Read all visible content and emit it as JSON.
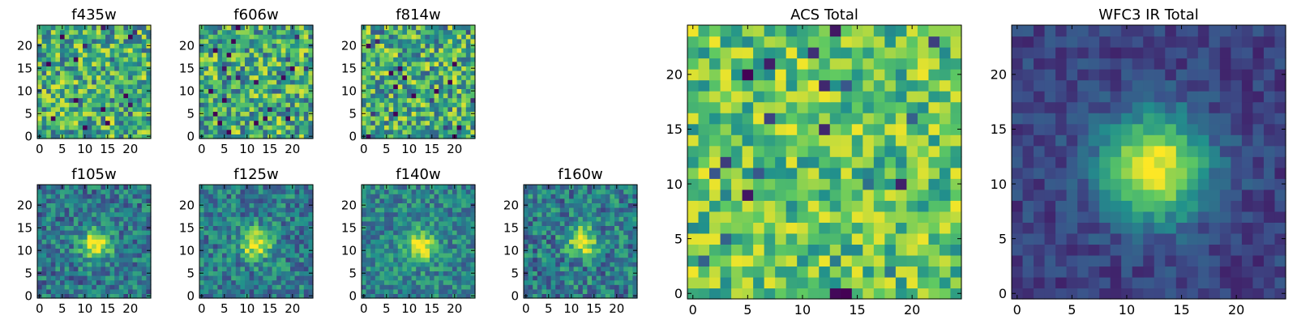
{
  "figure": {
    "colormap": "viridis",
    "colors": {
      "frame": "#000000",
      "background": "#ffffff",
      "viridis_stops": [
        "#440154",
        "#3b528b",
        "#21918c",
        "#5ec962",
        "#fde725"
      ]
    }
  },
  "chart_data": [
    {
      "id": "f435w",
      "type": "heatmap",
      "title": "f435w",
      "grid_size": 25,
      "xticks": [
        0,
        5,
        10,
        15,
        20
      ],
      "yticks": [
        0,
        5,
        10,
        15,
        20
      ],
      "xlim": [
        -0.5,
        24.5
      ],
      "ylim": [
        -0.5,
        24.5
      ],
      "content": "noise",
      "source_kind": "none",
      "mean_level": 0.62,
      "noise_amplitude": 0.34,
      "seed": 11
    },
    {
      "id": "f606w",
      "type": "heatmap",
      "title": "f606w",
      "grid_size": 25,
      "xticks": [
        0,
        5,
        10,
        15,
        20
      ],
      "yticks": [
        0,
        5,
        10,
        15,
        20
      ],
      "xlim": [
        -0.5,
        24.5
      ],
      "ylim": [
        -0.5,
        24.5
      ],
      "content": "noise",
      "source_kind": "none",
      "mean_level": 0.62,
      "noise_amplitude": 0.34,
      "seed": 23
    },
    {
      "id": "f814w",
      "type": "heatmap",
      "title": "f814w",
      "grid_size": 25,
      "xticks": [
        0,
        5,
        10,
        15,
        20
      ],
      "yticks": [
        0,
        5,
        10,
        15,
        20
      ],
      "xlim": [
        -0.5,
        24.5
      ],
      "ylim": [
        -0.5,
        24.5
      ],
      "content": "noise",
      "source_kind": "none",
      "mean_level": 0.62,
      "noise_amplitude": 0.34,
      "seed": 37
    },
    {
      "id": "f105w",
      "type": "heatmap",
      "title": "f105w",
      "grid_size": 25,
      "xticks": [
        0,
        5,
        10,
        15,
        20
      ],
      "yticks": [
        0,
        5,
        10,
        15,
        20
      ],
      "xlim": [
        -0.5,
        24.5
      ],
      "ylim": [
        -0.5,
        24.5
      ],
      "content": "source",
      "source_kind": "compact",
      "source_center": [
        12.5,
        11.5
      ],
      "source_sigma": 2.3,
      "source_peak": 0.62,
      "background_level": 0.4,
      "noise_amplitude": 0.22,
      "seed": 41
    },
    {
      "id": "f125w",
      "type": "heatmap",
      "title": "f125w",
      "grid_size": 25,
      "xticks": [
        0,
        5,
        10,
        15,
        20
      ],
      "yticks": [
        0,
        5,
        10,
        15,
        20
      ],
      "xlim": [
        -0.5,
        24.5
      ],
      "ylim": [
        -0.5,
        24.5
      ],
      "content": "source",
      "source_kind": "compact",
      "source_center": [
        12.0,
        11.5
      ],
      "source_sigma": 2.3,
      "source_peak": 0.6,
      "background_level": 0.42,
      "noise_amplitude": 0.22,
      "seed": 53
    },
    {
      "id": "f140w",
      "type": "heatmap",
      "title": "f140w",
      "grid_size": 25,
      "xticks": [
        0,
        5,
        10,
        15,
        20
      ],
      "yticks": [
        0,
        5,
        10,
        15,
        20
      ],
      "xlim": [
        -0.5,
        24.5
      ],
      "ylim": [
        -0.5,
        24.5
      ],
      "content": "source",
      "source_kind": "compact",
      "source_center": [
        12.5,
        11.0
      ],
      "source_sigma": 2.4,
      "source_peak": 0.55,
      "background_level": 0.45,
      "noise_amplitude": 0.2,
      "seed": 67
    },
    {
      "id": "f160w",
      "type": "heatmap",
      "title": "f160w",
      "grid_size": 25,
      "xticks": [
        0,
        5,
        10,
        15,
        20
      ],
      "yticks": [
        0,
        5,
        10,
        15,
        20
      ],
      "xlim": [
        -0.5,
        24.5
      ],
      "ylim": [
        -0.5,
        24.5
      ],
      "content": "source",
      "source_kind": "compact",
      "source_center": [
        12.5,
        12.0
      ],
      "source_sigma": 2.2,
      "source_peak": 0.6,
      "background_level": 0.42,
      "noise_amplitude": 0.24,
      "seed": 79
    },
    {
      "id": "acs_total",
      "type": "heatmap",
      "title": "ACS Total",
      "grid_size": 25,
      "xticks": [
        0,
        5,
        10,
        15,
        20
      ],
      "yticks": [
        0,
        5,
        10,
        15,
        20
      ],
      "xlim": [
        -0.5,
        24.5
      ],
      "ylim": [
        -0.5,
        24.5
      ],
      "content": "noise",
      "source_kind": "none",
      "mean_level": 0.72,
      "noise_amplitude": 0.26,
      "seed": 97
    },
    {
      "id": "wfc3_total",
      "type": "heatmap",
      "title": "WFC3 IR Total",
      "grid_size": 25,
      "xticks": [
        0,
        5,
        10,
        15,
        20
      ],
      "yticks": [
        0,
        5,
        10,
        15,
        20
      ],
      "xlim": [
        -0.5,
        24.5
      ],
      "ylim": [
        -0.5,
        24.5
      ],
      "content": "source",
      "source_kind": "extended",
      "source_center": [
        12.5,
        11.5
      ],
      "source_sigma": 3.3,
      "source_peak": 0.82,
      "background_level": 0.2,
      "noise_amplitude": 0.1,
      "seed": 131
    }
  ]
}
